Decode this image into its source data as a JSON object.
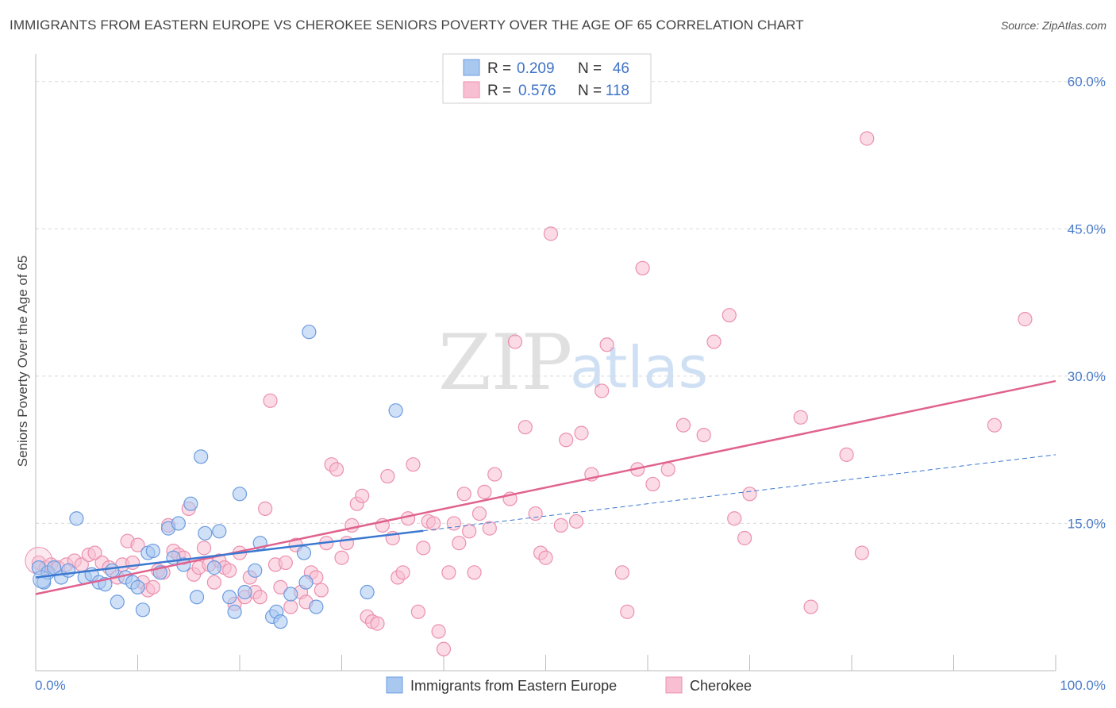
{
  "title": "IMMIGRANTS FROM EASTERN EUROPE VS CHEROKEE SENIORS POVERTY OVER THE AGE OF 65 CORRELATION CHART",
  "source": "Source: ZipAtlas.com",
  "watermark": {
    "zip": "ZIP",
    "atlas": "atlas"
  },
  "colors": {
    "blue_fill": "#a9c8f0",
    "blue_stroke": "#6b9be0",
    "blue_line": "#3a78d0",
    "pink_fill": "#f7bfd1",
    "pink_stroke": "#ec8fae",
    "pink_line": "#e0628f",
    "grid": "#d9d9d9",
    "tick_text": "#4a7cc9"
  },
  "legend": {
    "rows": [
      {
        "r_label": "R =",
        "r_value": "0.209",
        "n_label": "N =",
        "n_value": "46"
      },
      {
        "r_label": "R =",
        "r_value": "0.576",
        "n_label": "N =",
        "n_value": "118"
      }
    ]
  },
  "chart_data": {
    "type": "scatter",
    "title": "IMMIGRANTS FROM EASTERN EUROPE VS CHEROKEE SENIORS POVERTY OVER THE AGE OF 65 CORRELATION CHART",
    "xlabel": "",
    "ylabel": "Seniors Poverty Over the Age of 65",
    "xlim": [
      0,
      100
    ],
    "ylim": [
      0,
      62
    ],
    "x_tick_labels": {
      "min": "0.0%",
      "max": "100.0%"
    },
    "y_ticks": [
      15,
      30,
      45,
      60
    ],
    "y_tick_labels": [
      "15.0%",
      "30.0%",
      "45.0%",
      "60.0%"
    ],
    "grid": true,
    "legend_placement": "top-center",
    "series": [
      {
        "name": "Immigrants from Eastern Europe",
        "color": "#a9c8f0",
        "r": "0.209",
        "n": "46",
        "trend": {
          "x0": 0,
          "y0": 9.5,
          "x1": 100,
          "y1": 22.0,
          "solid_until": 38
        },
        "points": [
          [
            0.3,
            10.5
          ],
          [
            0.8,
            9.0
          ],
          [
            1.2,
            10.0
          ],
          [
            1.8,
            10.5
          ],
          [
            2.5,
            9.5
          ],
          [
            3.2,
            10.2
          ],
          [
            4.0,
            15.5
          ],
          [
            4.8,
            9.5
          ],
          [
            5.5,
            9.8
          ],
          [
            6.2,
            9.0
          ],
          [
            6.8,
            8.8
          ],
          [
            7.5,
            10.2
          ],
          [
            8.0,
            7.0
          ],
          [
            8.8,
            9.5
          ],
          [
            9.5,
            9.0
          ],
          [
            10.0,
            8.5
          ],
          [
            10.5,
            6.2
          ],
          [
            11.0,
            12.0
          ],
          [
            11.5,
            12.2
          ],
          [
            12.2,
            10.0
          ],
          [
            13.0,
            14.5
          ],
          [
            13.5,
            11.5
          ],
          [
            14.0,
            15.0
          ],
          [
            14.5,
            10.8
          ],
          [
            15.2,
            17.0
          ],
          [
            15.8,
            7.5
          ],
          [
            16.2,
            21.8
          ],
          [
            16.6,
            14.0
          ],
          [
            17.5,
            10.5
          ],
          [
            18.0,
            14.2
          ],
          [
            19.0,
            7.5
          ],
          [
            19.5,
            6.0
          ],
          [
            20.0,
            18.0
          ],
          [
            20.5,
            8.0
          ],
          [
            21.5,
            10.2
          ],
          [
            22.0,
            13.0
          ],
          [
            23.2,
            5.5
          ],
          [
            23.6,
            6.0
          ],
          [
            24.0,
            5.0
          ],
          [
            25.0,
            7.8
          ],
          [
            26.3,
            12.0
          ],
          [
            26.5,
            9.0
          ],
          [
            26.8,
            34.5
          ],
          [
            27.5,
            6.5
          ],
          [
            32.5,
            8.0
          ],
          [
            35.3,
            26.5
          ]
        ]
      },
      {
        "name": "Cherokee",
        "color": "#f7bfd1",
        "r": "0.576",
        "n": "118",
        "trend": {
          "x0": 0,
          "y0": 7.8,
          "x1": 100,
          "y1": 29.5
        },
        "points": [
          [
            0.3,
            11.0
          ],
          [
            1.0,
            10.5
          ],
          [
            1.5,
            10.8
          ],
          [
            2.2,
            10.5
          ],
          [
            3.0,
            10.8
          ],
          [
            3.8,
            11.2
          ],
          [
            4.5,
            10.8
          ],
          [
            5.2,
            11.8
          ],
          [
            5.8,
            12.0
          ],
          [
            6.5,
            11.0
          ],
          [
            7.2,
            10.5
          ],
          [
            8.0,
            9.5
          ],
          [
            8.5,
            10.8
          ],
          [
            9.0,
            13.2
          ],
          [
            9.5,
            11.0
          ],
          [
            10.0,
            12.8
          ],
          [
            10.5,
            9.0
          ],
          [
            11.0,
            8.2
          ],
          [
            11.5,
            8.5
          ],
          [
            12.0,
            10.2
          ],
          [
            12.5,
            10.0
          ],
          [
            13.0,
            14.8
          ],
          [
            13.5,
            12.2
          ],
          [
            14.0,
            11.8
          ],
          [
            14.5,
            11.5
          ],
          [
            15.0,
            16.5
          ],
          [
            15.5,
            9.8
          ],
          [
            16.0,
            10.5
          ],
          [
            16.5,
            12.5
          ],
          [
            17.0,
            10.8
          ],
          [
            17.5,
            9.0
          ],
          [
            18.0,
            11.2
          ],
          [
            18.5,
            10.5
          ],
          [
            19.0,
            10.2
          ],
          [
            19.5,
            6.8
          ],
          [
            20.0,
            12.0
          ],
          [
            20.5,
            7.5
          ],
          [
            21.0,
            9.5
          ],
          [
            21.5,
            8.0
          ],
          [
            22.0,
            7.5
          ],
          [
            22.5,
            16.5
          ],
          [
            23.0,
            27.5
          ],
          [
            23.5,
            10.8
          ],
          [
            24.0,
            8.5
          ],
          [
            24.5,
            11.0
          ],
          [
            25.0,
            6.5
          ],
          [
            25.5,
            12.8
          ],
          [
            26.0,
            8.0
          ],
          [
            26.5,
            7.0
          ],
          [
            27.0,
            10.0
          ],
          [
            27.5,
            9.5
          ],
          [
            28.0,
            8.2
          ],
          [
            28.5,
            13.0
          ],
          [
            29.0,
            21.0
          ],
          [
            29.5,
            20.5
          ],
          [
            30.0,
            11.5
          ],
          [
            30.5,
            13.0
          ],
          [
            31.0,
            14.8
          ],
          [
            31.5,
            17.0
          ],
          [
            32.0,
            17.8
          ],
          [
            32.5,
            5.5
          ],
          [
            33.0,
            5.0
          ],
          [
            33.5,
            4.8
          ],
          [
            34.0,
            14.8
          ],
          [
            34.5,
            19.8
          ],
          [
            35.0,
            13.5
          ],
          [
            35.5,
            9.5
          ],
          [
            36.0,
            10.0
          ],
          [
            36.5,
            15.5
          ],
          [
            37.0,
            21.0
          ],
          [
            37.5,
            6.0
          ],
          [
            38.0,
            12.5
          ],
          [
            38.5,
            15.2
          ],
          [
            39.0,
            15.0
          ],
          [
            39.5,
            4.0
          ],
          [
            40.0,
            2.2
          ],
          [
            40.5,
            10.0
          ],
          [
            41.0,
            15.0
          ],
          [
            41.5,
            13.0
          ],
          [
            42.0,
            18.0
          ],
          [
            42.5,
            14.2
          ],
          [
            43.0,
            10.0
          ],
          [
            43.5,
            16.0
          ],
          [
            44.0,
            18.2
          ],
          [
            44.5,
            14.5
          ],
          [
            45.0,
            20.0
          ],
          [
            46.5,
            17.5
          ],
          [
            47.0,
            33.5
          ],
          [
            48.0,
            24.8
          ],
          [
            49.0,
            16.0
          ],
          [
            49.5,
            12.0
          ],
          [
            50.0,
            11.5
          ],
          [
            50.5,
            44.5
          ],
          [
            51.5,
            14.8
          ],
          [
            52.0,
            23.5
          ],
          [
            53.0,
            15.2
          ],
          [
            53.5,
            24.2
          ],
          [
            54.5,
            20.0
          ],
          [
            55.5,
            28.5
          ],
          [
            56.0,
            33.2
          ],
          [
            57.5,
            10.0
          ],
          [
            58.0,
            6.0
          ],
          [
            59.0,
            20.5
          ],
          [
            59.5,
            41.0
          ],
          [
            60.5,
            19.0
          ],
          [
            62.0,
            20.5
          ],
          [
            63.5,
            25.0
          ],
          [
            65.5,
            24.0
          ],
          [
            66.5,
            33.5
          ],
          [
            68.0,
            36.2
          ],
          [
            68.5,
            15.5
          ],
          [
            69.5,
            13.5
          ],
          [
            70.0,
            18.0
          ],
          [
            75.0,
            25.8
          ],
          [
            76.0,
            6.5
          ],
          [
            79.5,
            22.0
          ],
          [
            81.0,
            12.0
          ],
          [
            81.5,
            54.2
          ],
          [
            94.0,
            25.0
          ],
          [
            97.0,
            35.8
          ]
        ]
      }
    ]
  }
}
